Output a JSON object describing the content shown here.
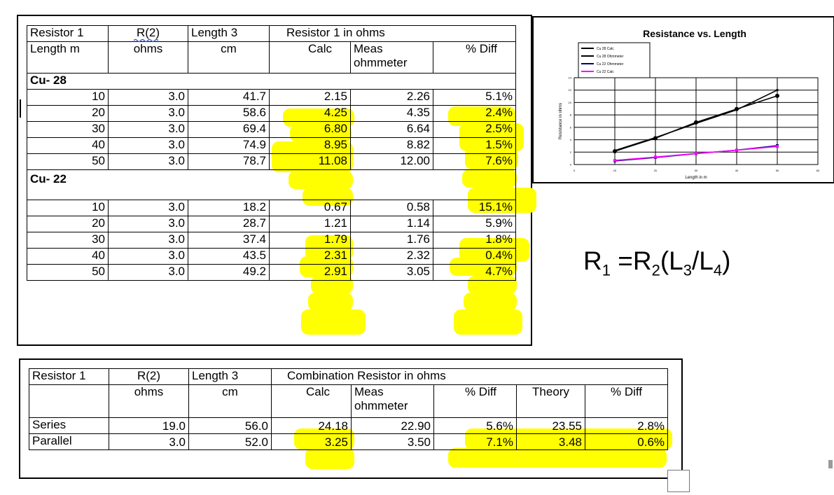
{
  "table1": {
    "header1": [
      "Resistor 1",
      "R(2)",
      "Length 3",
      "Resistor 1 in ohms"
    ],
    "header2": [
      "Length m",
      "ohms",
      "cm",
      "Calc",
      "Meas",
      "% Diff"
    ],
    "header2_meas_line2": "ohmmeter",
    "groups": [
      {
        "label": "Cu- 28",
        "rows": [
          [
            "10",
            "3.0",
            "41.7",
            "2.15",
            "2.26",
            "5.1%"
          ],
          [
            "20",
            "3.0",
            "58.6",
            "4.25",
            "4.35",
            "2.4%"
          ],
          [
            "30",
            "3.0",
            "69.4",
            "6.80",
            "6.64",
            "2.5%"
          ],
          [
            "40",
            "3.0",
            "74.9",
            "8.95",
            "8.82",
            "1.5%"
          ],
          [
            "50",
            "3.0",
            "78.7",
            "11.08",
            "12.00",
            "7.6%"
          ]
        ]
      },
      {
        "label": "Cu- 22",
        "rows": [
          [
            "10",
            "3.0",
            "18.2",
            "0.67",
            "0.58",
            "15.1%"
          ],
          [
            "20",
            "3.0",
            "28.7",
            "1.21",
            "1.14",
            "5.9%"
          ],
          [
            "30",
            "3.0",
            "37.4",
            "1.79",
            "1.76",
            "1.8%"
          ],
          [
            "40",
            "3.0",
            "43.5",
            "2.31",
            "2.32",
            "0.4%"
          ],
          [
            "50",
            "3.0",
            "49.2",
            "2.91",
            "3.05",
            "4.7%"
          ]
        ]
      }
    ]
  },
  "table2": {
    "header1": [
      "Resistor 1",
      "R(2)",
      "Length 3",
      "Combination Resistor  in ohms"
    ],
    "header2": [
      "",
      "ohms",
      "cm",
      "Calc",
      "Meas",
      "% Diff",
      "Theory",
      "% Diff"
    ],
    "header2_meas_line2": "ohmmeter",
    "rows": [
      [
        "Series",
        "19.0",
        "56.0",
        "24.18",
        "22.90",
        "5.6%",
        "23.55",
        "2.8%"
      ],
      [
        "Parallel",
        "3.0",
        "52.0",
        "3.25",
        "3.50",
        "7.1%",
        "3.48",
        "0.6%"
      ]
    ]
  },
  "formula": {
    "R": "R",
    "sub1": "1",
    "eq": " =R",
    "sub2": "2",
    "open": "(L",
    "sub3": "3",
    "slash": "/L",
    "sub4": "4",
    "close": ")"
  },
  "colors": {
    "highlight": "#ffff00",
    "series_cu28_calc": "#000000",
    "series_cu28_ohm": "#000000",
    "series_cu22_ohm": "#000080",
    "series_cu22_calc": "#ff00ff"
  },
  "chart_data": {
    "type": "line",
    "title": "Resistance vs. Length",
    "xlabel": "Length in m",
    "ylabel": "Resistance in ohms",
    "x": [
      10,
      20,
      30,
      40,
      50
    ],
    "xlim": [
      0,
      60
    ],
    "ylim": [
      0,
      14
    ],
    "grid": true,
    "legend_position": "top-left",
    "series": [
      {
        "name": "Cu 28 Calc",
        "color": "#000000",
        "values": [
          2.15,
          4.25,
          6.8,
          8.95,
          11.08
        ]
      },
      {
        "name": "Cu 28 Ohmmeter",
        "color": "#000000",
        "values": [
          2.26,
          4.35,
          6.64,
          8.82,
          12.0
        ]
      },
      {
        "name": "Cu 22 Ohmmeter",
        "color": "#000080",
        "values": [
          0.58,
          1.14,
          1.76,
          2.32,
          3.05
        ]
      },
      {
        "name": "Cu 22 Calc",
        "color": "#ff00ff",
        "values": [
          0.67,
          1.21,
          1.79,
          2.31,
          2.91
        ]
      }
    ]
  }
}
